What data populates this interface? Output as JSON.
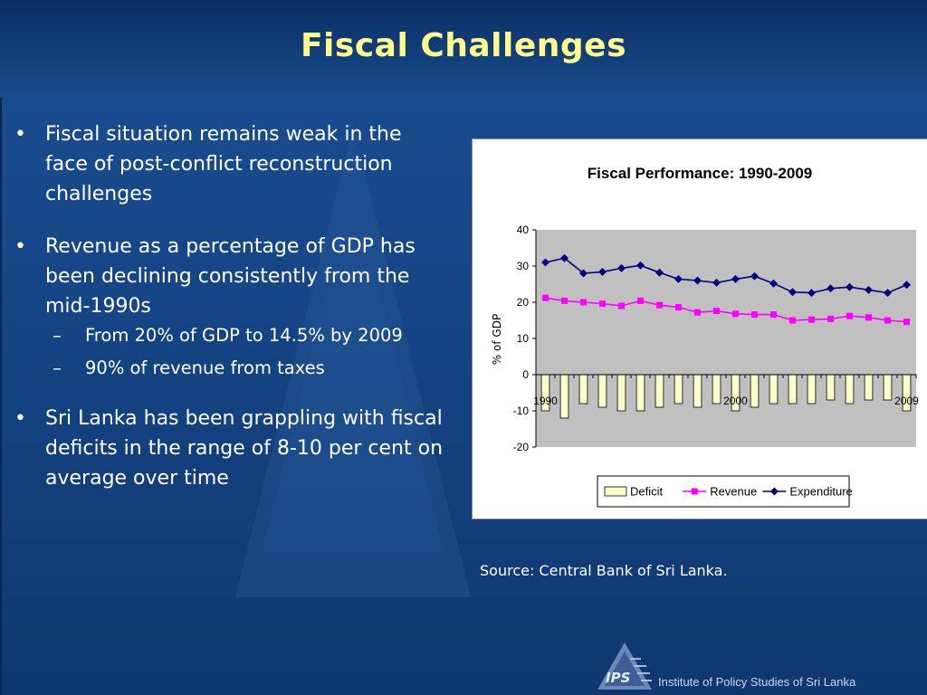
{
  "slide": {
    "title": "Fiscal Challenges",
    "bullets": [
      {
        "text": "Fiscal situation remains weak in the face of post-conflict reconstruction challenges"
      },
      {
        "text": "Revenue as a percentage of GDP has been declining consistently from the mid-1990s",
        "subs": [
          "From 20% of GDP to 14.5% by 2009",
          "90% of revenue from taxes"
        ]
      },
      {
        "text": "Sri Lanka has been grappling with fiscal deficits in the range of 8-10 per cent on average over time"
      }
    ],
    "bullet_glyph": "•",
    "sub_glyph": "–",
    "source": "Source: Central Bank of Sri Lanka.",
    "footer": "Institute of Policy Studies of Sri Lanka",
    "logo_text": "IPS",
    "colors": {
      "title": "#fffb8c",
      "background": "#154585"
    }
  },
  "chart_data": {
    "type": "bar",
    "title": "Fiscal Performance: 1990-2009",
    "xlabel": "",
    "ylabel": "% of GDP",
    "ylim": [
      -20,
      40
    ],
    "yticks": [
      -20,
      -10,
      0,
      10,
      20,
      30,
      40
    ],
    "grid": false,
    "legend_position": "bottom",
    "categories": [
      1990,
      1991,
      1992,
      1993,
      1994,
      1995,
      1996,
      1997,
      1998,
      1999,
      2000,
      2001,
      2002,
      2003,
      2004,
      2005,
      2006,
      2007,
      2008,
      2009
    ],
    "category_labels": {
      "0": "1990",
      "10": "2000",
      "19": "2009"
    },
    "series": [
      {
        "name": "Deficit",
        "kind": "bar",
        "color": "#ffffcc",
        "values": [
          -10,
          -12,
          -8,
          -9,
          -10,
          -10,
          -9,
          -8,
          -9,
          -8,
          -10,
          -9,
          -8,
          -8,
          -8,
          -7,
          -8,
          -7,
          -7,
          -10
        ]
      },
      {
        "name": "Revenue",
        "kind": "line",
        "marker": "square",
        "color": "#ff00ff",
        "values": [
          21.2,
          20.4,
          20.0,
          19.6,
          19.0,
          20.4,
          19.2,
          18.6,
          17.2,
          17.6,
          16.8,
          16.6,
          16.6,
          15.0,
          15.2,
          15.4,
          16.2,
          15.8,
          15.0,
          14.6
        ]
      },
      {
        "name": "Expenditure",
        "kind": "line",
        "marker": "diamond",
        "color": "#000080",
        "values": [
          31.0,
          32.2,
          28.0,
          28.4,
          29.4,
          30.2,
          28.2,
          26.4,
          26.0,
          25.4,
          26.4,
          27.2,
          25.2,
          22.8,
          22.6,
          23.8,
          24.2,
          23.4,
          22.6,
          24.8
        ]
      }
    ]
  }
}
